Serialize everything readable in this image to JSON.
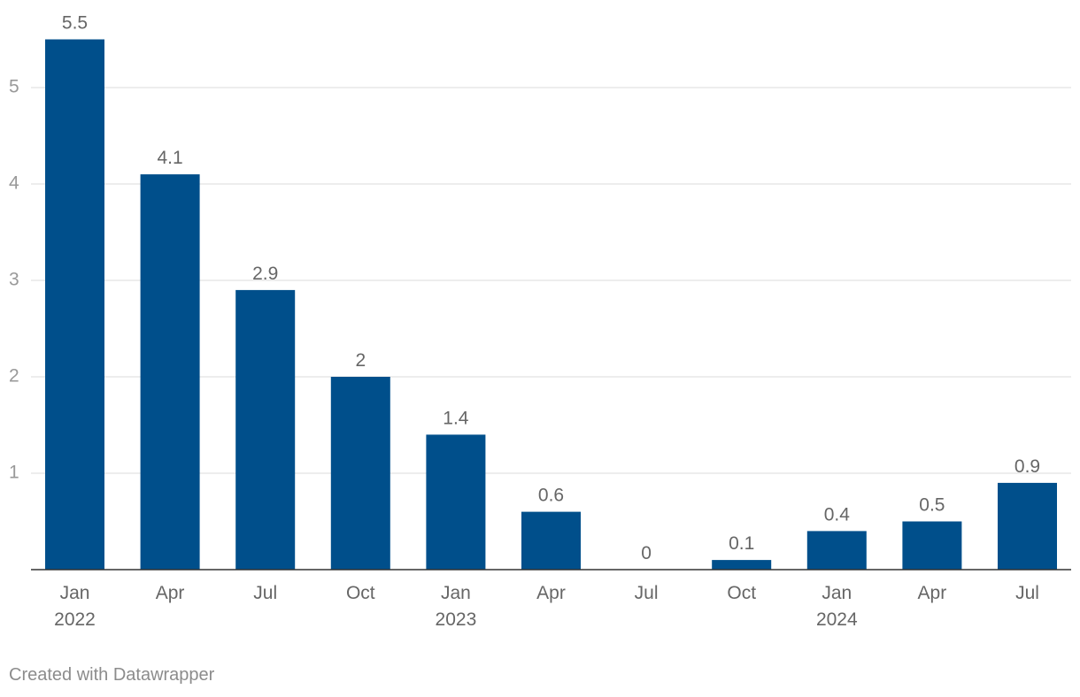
{
  "chart_data": {
    "type": "bar",
    "categories": [
      "Jan 2022",
      "Apr 2022",
      "Jul 2022",
      "Oct 2022",
      "Jan 2023",
      "Apr 2023",
      "Jul 2023",
      "Oct 2023",
      "Jan 2024",
      "Apr 2024",
      "Jul 2024"
    ],
    "tick_labels": [
      [
        "Jan",
        "2022"
      ],
      [
        "Apr"
      ],
      [
        "Jul"
      ],
      [
        "Oct"
      ],
      [
        "Jan",
        "2023"
      ],
      [
        "Apr"
      ],
      [
        "Jul"
      ],
      [
        "Oct"
      ],
      [
        "Jan",
        "2024"
      ],
      [
        "Apr"
      ],
      [
        "Jul"
      ]
    ],
    "values": [
      5.5,
      4.1,
      2.9,
      2,
      1.4,
      0.6,
      0,
      0.1,
      0.4,
      0.5,
      0.9
    ],
    "value_labels": [
      "5.5",
      "4.1",
      "2.9",
      "2",
      "1.4",
      "0.6",
      "0",
      "0.1",
      "0.4",
      "0.5",
      "0.9"
    ],
    "ylim": [
      0,
      5.5
    ],
    "yticks": [
      1,
      2,
      3,
      4,
      5
    ],
    "grid": true,
    "legend": "none",
    "colors": {
      "bar": "#004f8b",
      "grid": "#e2e2e2",
      "axis": "#333333"
    }
  },
  "footer": {
    "credit": "Created with Datawrapper"
  }
}
